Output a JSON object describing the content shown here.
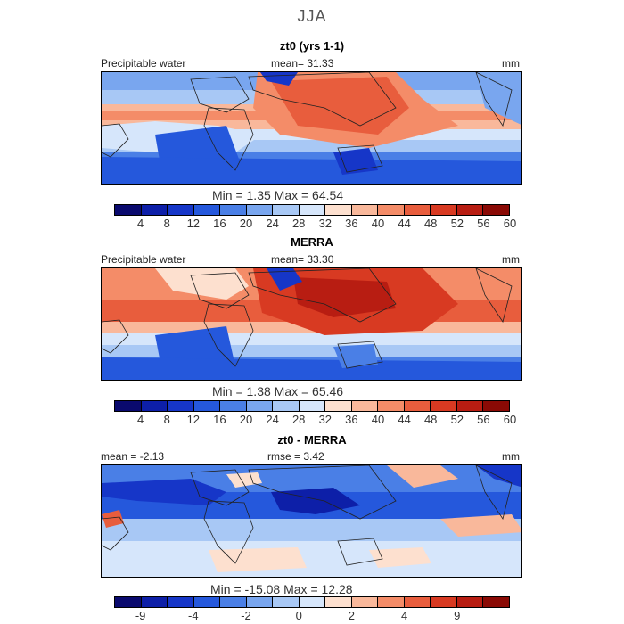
{
  "figure": {
    "title": "JJA"
  },
  "panels": [
    {
      "subtitle": "zt0 (yrs 1-1)",
      "left_label": "Precipitable water",
      "center_label": "mean=   31.33",
      "right_label": "mm",
      "minmax": "Min =     1.35  Max =   64.54",
      "type": "field"
    },
    {
      "subtitle": "MERRA",
      "left_label": "Precipitable water",
      "center_label": "mean=   33.30",
      "right_label": "mm",
      "minmax": "Min =     1.38  Max =   65.46",
      "type": "field"
    },
    {
      "subtitle": "zt0 - MERRA",
      "left_label": "mean =   -2.13",
      "center_label": "rmse =     3.42",
      "right_label": "mm",
      "minmax": "Min =  -15.08  Max =   12.28",
      "type": "diff"
    }
  ],
  "colorbars": {
    "field": {
      "colors": [
        "#0a0a6e",
        "#0d1fa8",
        "#1636c8",
        "#2558dc",
        "#4a7fe6",
        "#79a6ef",
        "#a8c8f5",
        "#d6e6fb",
        "#fde0cf",
        "#f9b89b",
        "#f48c68",
        "#e85d3d",
        "#d83a22",
        "#b81d12",
        "#8a0a05"
      ],
      "ticks": [
        "4",
        "8",
        "12",
        "16",
        "20",
        "24",
        "28",
        "32",
        "36",
        "40",
        "44",
        "48",
        "52",
        "56",
        "60"
      ]
    },
    "diff": {
      "colors": [
        "#0a0a6e",
        "#0d1fa8",
        "#1636c8",
        "#2558dc",
        "#4a7fe6",
        "#79a6ef",
        "#a8c8f5",
        "#d6e6fb",
        "#fde0cf",
        "#f9b89b",
        "#f48c68",
        "#e85d3d",
        "#d83a22",
        "#b81d12",
        "#8a0a05"
      ],
      "ticks": [
        "-9",
        "-4",
        "-2",
        "0",
        "2",
        "4",
        "9"
      ]
    }
  }
}
